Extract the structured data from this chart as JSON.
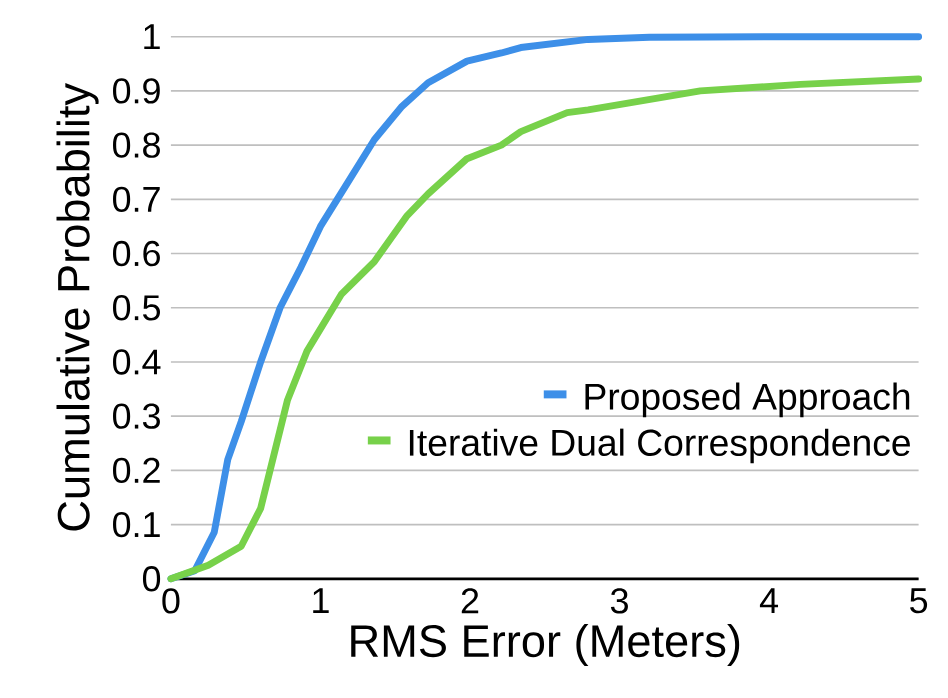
{
  "chart_data": {
    "type": "line",
    "xlabel": "RMS Error (Meters)",
    "ylabel": "Cumulative Probability",
    "xlim": [
      0,
      5
    ],
    "ylim": [
      0,
      1
    ],
    "xticks": [
      0,
      1,
      2,
      3,
      4,
      5
    ],
    "yticks": [
      0,
      0.1,
      0.2,
      0.3,
      0.4,
      0.5,
      0.6,
      0.7,
      0.8,
      0.9,
      1
    ],
    "grid": "y",
    "legend": "bottom right",
    "marker": "none",
    "line_style": "solid",
    "series": [
      {
        "name": "Proposed Approach",
        "color": "#3d8fe8",
        "x": [
          0,
          0.16,
          0.29,
          0.38,
          0.47,
          0.6,
          0.73,
          0.87,
          1.0,
          1.18,
          1.36,
          1.54,
          1.72,
          1.98,
          2.21,
          2.34,
          2.79,
          3.2,
          4.0,
          5.0
        ],
        "values": [
          0,
          0.015,
          0.086,
          0.22,
          0.29,
          0.4,
          0.5,
          0.575,
          0.65,
          0.73,
          0.81,
          0.87,
          0.915,
          0.955,
          0.97,
          0.98,
          0.995,
          0.999,
          1.0,
          1.0
        ]
      },
      {
        "name": "Iterative Dual Correspondence",
        "color": "#77d14a",
        "x": [
          0,
          0.25,
          0.47,
          0.6,
          0.69,
          0.78,
          0.91,
          1.14,
          1.36,
          1.58,
          1.72,
          1.98,
          2.21,
          2.34,
          2.65,
          2.79,
          3.54,
          4.21,
          5.0
        ],
        "values": [
          0,
          0.025,
          0.06,
          0.13,
          0.23,
          0.33,
          0.42,
          0.525,
          0.585,
          0.67,
          0.71,
          0.775,
          0.8,
          0.825,
          0.86,
          0.865,
          0.9,
          0.912,
          0.922
        ]
      }
    ]
  }
}
